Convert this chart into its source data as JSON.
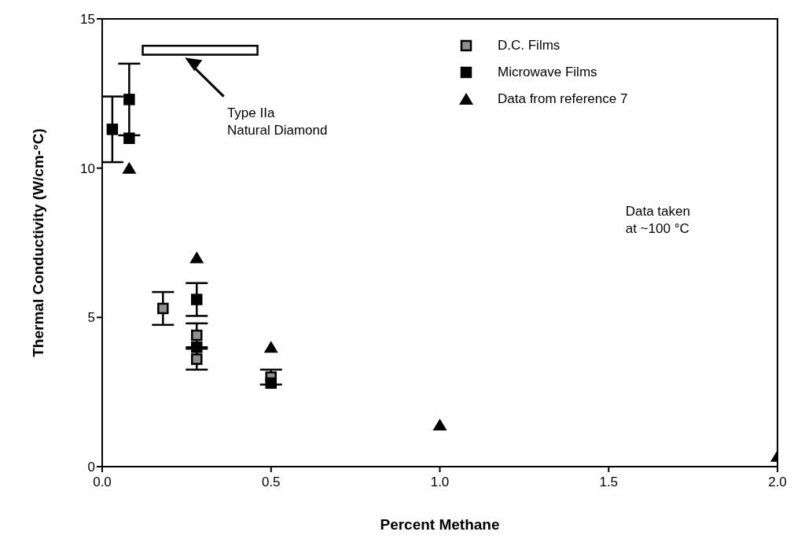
{
  "chart_data": {
    "type": "scatter",
    "xlabel": "Percent Methane",
    "ylabel": "Thermal Conductivity  (W/cm-°C)",
    "xlim": [
      0,
      2
    ],
    "xticks": [
      {
        "value": 0,
        "label": "0.0"
      },
      0.5,
      {
        "value": 1,
        "label": "1.0"
      },
      1.5,
      {
        "value": 2,
        "label": "2.0"
      }
    ],
    "ylim": [
      0,
      15
    ],
    "yticks": [
      0,
      5,
      10,
      15
    ],
    "grid": false,
    "legend": "top right",
    "series": [
      {
        "name": "D.C. Films",
        "color": "#909090",
        "marker": "square",
        "x": [
          0.18,
          0.28,
          0.28,
          0.5
        ],
        "values": [
          5.3,
          4.4,
          3.6,
          3.0
        ],
        "errors": [
          0.55,
          0.4,
          0.35,
          0.25
        ]
      },
      {
        "name": "Microwave Films",
        "color": "#000000",
        "marker": "square",
        "x": [
          0.03,
          0.08,
          0.08,
          0.28,
          0.28,
          0.5
        ],
        "values": [
          11.3,
          12.3,
          11.0,
          5.6,
          4.0,
          2.8
        ],
        "errors": [
          1.1,
          1.2,
          null,
          0.55,
          null,
          null
        ]
      },
      {
        "name": "Data from reference 7",
        "color": "#000000",
        "marker": "triangle",
        "x": [
          0.08,
          0.28,
          0.5,
          1.0,
          2.0
        ],
        "values": [
          10.0,
          7.0,
          4.0,
          1.4,
          0.35
        ]
      }
    ],
    "annotations": [
      "Type IIa\nNatural Diamond",
      "Data taken\nat ~100 °C"
    ]
  }
}
